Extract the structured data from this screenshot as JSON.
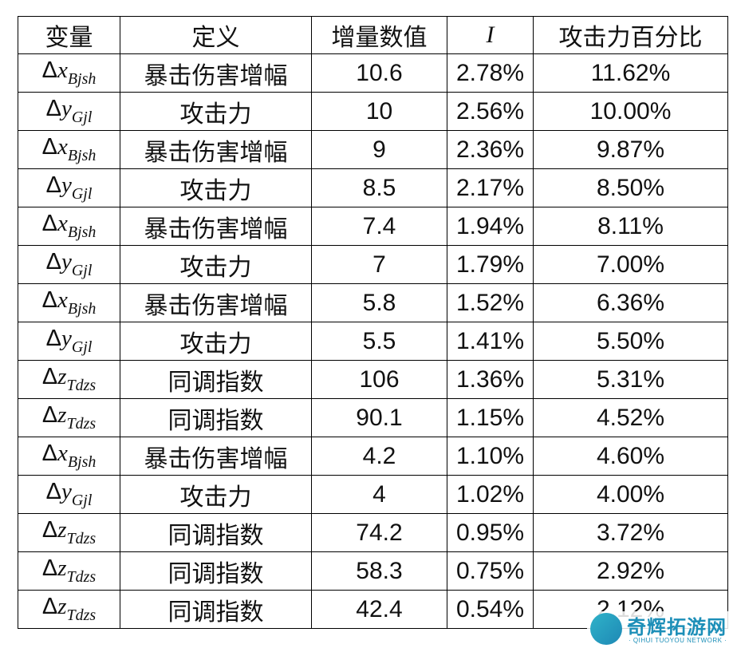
{
  "table": {
    "header": [
      "变量",
      "定义",
      "增量数值",
      "I",
      "攻击力百分比"
    ],
    "rows": [
      {
        "var": {
          "delta": "Δ",
          "letter": "x",
          "sub": "Bjsh"
        },
        "def": "暴击伤害增幅",
        "inc": "10.6",
        "I": "2.78%",
        "pct": "11.62%"
      },
      {
        "var": {
          "delta": "Δ",
          "letter": "y",
          "sub": "Gjl"
        },
        "def": "攻击力",
        "inc": "10",
        "I": "2.56%",
        "pct": "10.00%"
      },
      {
        "var": {
          "delta": "Δ",
          "letter": "x",
          "sub": "Bjsh"
        },
        "def": "暴击伤害增幅",
        "inc": "9",
        "I": "2.36%",
        "pct": "9.87%"
      },
      {
        "var": {
          "delta": "Δ",
          "letter": "y",
          "sub": "Gjl"
        },
        "def": "攻击力",
        "inc": "8.5",
        "I": "2.17%",
        "pct": "8.50%"
      },
      {
        "var": {
          "delta": "Δ",
          "letter": "x",
          "sub": "Bjsh"
        },
        "def": "暴击伤害增幅",
        "inc": "7.4",
        "I": "1.94%",
        "pct": "8.11%"
      },
      {
        "var": {
          "delta": "Δ",
          "letter": "y",
          "sub": "Gjl"
        },
        "def": "攻击力",
        "inc": "7",
        "I": "1.79%",
        "pct": "7.00%"
      },
      {
        "var": {
          "delta": "Δ",
          "letter": "x",
          "sub": "Bjsh"
        },
        "def": "暴击伤害增幅",
        "inc": "5.8",
        "I": "1.52%",
        "pct": "6.36%"
      },
      {
        "var": {
          "delta": "Δ",
          "letter": "y",
          "sub": "Gjl"
        },
        "def": "攻击力",
        "inc": "5.5",
        "I": "1.41%",
        "pct": "5.50%"
      },
      {
        "var": {
          "delta": "Δ",
          "letter": "z",
          "sub": "Tdzs"
        },
        "def": "同调指数",
        "inc": "106",
        "I": "1.36%",
        "pct": "5.31%"
      },
      {
        "var": {
          "delta": "Δ",
          "letter": "z",
          "sub": "Tdzs"
        },
        "def": "同调指数",
        "inc": "90.1",
        "I": "1.15%",
        "pct": "4.52%"
      },
      {
        "var": {
          "delta": "Δ",
          "letter": "x",
          "sub": "Bjsh"
        },
        "def": "暴击伤害增幅",
        "inc": "4.2",
        "I": "1.10%",
        "pct": "4.60%"
      },
      {
        "var": {
          "delta": "Δ",
          "letter": "y",
          "sub": "Gjl"
        },
        "def": "攻击力",
        "inc": "4",
        "I": "1.02%",
        "pct": "4.00%"
      },
      {
        "var": {
          "delta": "Δ",
          "letter": "z",
          "sub": "Tdzs"
        },
        "def": "同调指数",
        "inc": "74.2",
        "I": "0.95%",
        "pct": "3.72%"
      },
      {
        "var": {
          "delta": "Δ",
          "letter": "z",
          "sub": "Tdzs"
        },
        "def": "同调指数",
        "inc": "58.3",
        "I": "0.75%",
        "pct": "2.92%"
      },
      {
        "var": {
          "delta": "Δ",
          "letter": "z",
          "sub": "Tdzs"
        },
        "def": "同调指数",
        "inc": "42.4",
        "I": "0.54%",
        "pct": "2.12%"
      }
    ]
  },
  "watermark": {
    "title": "奇辉拓游网",
    "subtitle": "· QIHUI TUOYOU NETWORK ·"
  }
}
